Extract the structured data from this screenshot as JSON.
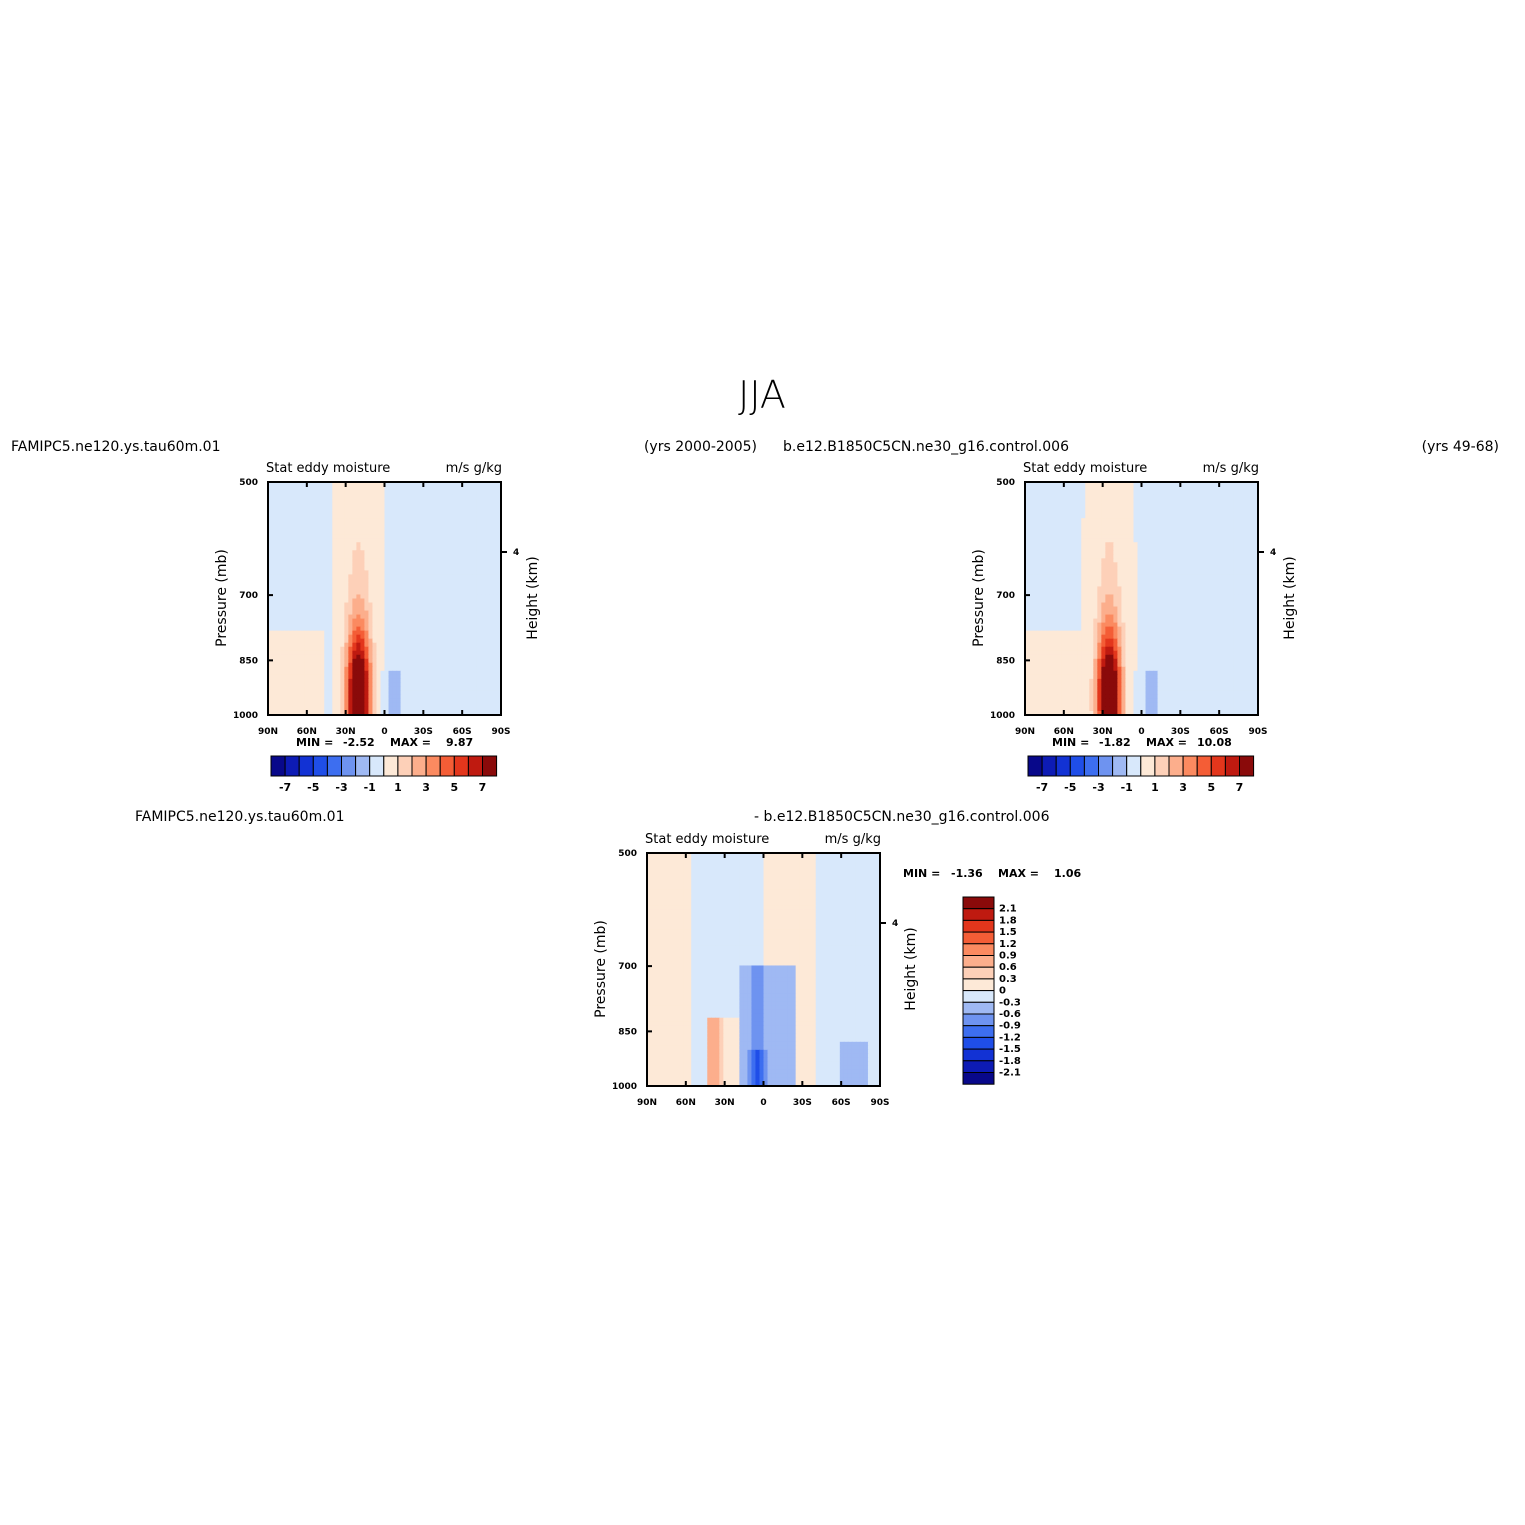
{
  "page_title": "JJA",
  "colors": {
    "neg": [
      "#08088a",
      "#0d1bb5",
      "#1232d4",
      "#1f4ee8",
      "#3d6ef0",
      "#6e93f0",
      "#9fb9f3",
      "#d8e8fb"
    ],
    "pos": [
      "#fde9d7",
      "#fdd0b8",
      "#fcae8c",
      "#fb8a60",
      "#f45d36",
      "#e3361c",
      "#bf1a10",
      "#8a0a0a"
    ],
    "axis": "#000000"
  },
  "chart_data": [
    {
      "type": "heatmap",
      "id": "panel1",
      "case_label": "FAMIPC5.ne120.ys.tau60m.01",
      "years_label": "(yrs 2000-2005)",
      "title": "Stat eddy moisture",
      "units": "m/s g/kg",
      "xlabel": "",
      "ylabel": "Pressure (mb)",
      "ylabel_right": "Height (km)",
      "x_ticks": [
        "90N",
        "60N",
        "30N",
        "0",
        "30S",
        "60S",
        "90S"
      ],
      "x_range": [
        90,
        -90
      ],
      "y_ticks": [
        "500",
        "700",
        "850",
        "1000"
      ],
      "y_range": [
        500,
        1000
      ],
      "right_ticks": [
        "4"
      ],
      "min_label": "MIN =",
      "min_value": "-2.52",
      "max_label": "MAX =",
      "max_value": "9.87",
      "colorbar_labels": [
        "-7",
        "-5",
        "-3",
        "-1",
        "1",
        "3",
        "5",
        "7"
      ],
      "contour_levels": [
        -7,
        -6,
        -5,
        -4,
        -3,
        -2,
        -1,
        0,
        1,
        2,
        3,
        4,
        5,
        6,
        7
      ],
      "max_center": {
        "lat": 20,
        "p": 950
      },
      "background": -0.5
    },
    {
      "type": "heatmap",
      "id": "panel2",
      "case_label": "b.e12.B1850C5CN.ne30_g16.control.006",
      "years_label": "(yrs 49-68)",
      "title": "Stat eddy moisture",
      "units": "m/s g/kg",
      "xlabel": "",
      "ylabel": "Pressure (mb)",
      "ylabel_right": "Height (km)",
      "x_ticks": [
        "90N",
        "60N",
        "30N",
        "0",
        "30S",
        "60S",
        "90S"
      ],
      "x_range": [
        90,
        -90
      ],
      "y_ticks": [
        "500",
        "700",
        "850",
        "1000"
      ],
      "y_range": [
        500,
        1000
      ],
      "right_ticks": [
        "4"
      ],
      "min_label": "MIN =",
      "min_value": "-1.82",
      "max_label": "MAX =",
      "max_value": "10.08",
      "colorbar_labels": [
        "-7",
        "-5",
        "-3",
        "-1",
        "1",
        "3",
        "5",
        "7"
      ],
      "contour_levels": [
        -7,
        -6,
        -5,
        -4,
        -3,
        -2,
        -1,
        0,
        1,
        2,
        3,
        4,
        5,
        6,
        7
      ],
      "max_center": {
        "lat": 25,
        "p": 950
      },
      "background": -0.5
    },
    {
      "type": "heatmap",
      "id": "panel3",
      "case_label": "FAMIPC5.ne120.ys.tau60m.01",
      "diff_label": "- b.e12.B1850C5CN.ne30_g16.control.006",
      "title": "Stat eddy moisture",
      "units": "m/s g/kg",
      "xlabel": "",
      "ylabel": "Pressure (mb)",
      "ylabel_right": "Height (km)",
      "x_ticks": [
        "90N",
        "60N",
        "30N",
        "0",
        "30S",
        "60S",
        "90S"
      ],
      "x_range": [
        90,
        -90
      ],
      "y_ticks": [
        "500",
        "700",
        "850",
        "1000"
      ],
      "y_range": [
        500,
        1000
      ],
      "right_ticks": [
        "4"
      ],
      "min_label": "MIN =",
      "min_value": "-1.36",
      "max_label": "MAX =",
      "max_value": "1.06",
      "colorbar_labels": [
        "2.1",
        "1.8",
        "1.5",
        "1.2",
        "0.9",
        "0.6",
        "0.3",
        "0",
        "-0.3",
        "-0.6",
        "-0.9",
        "-1.2",
        "-1.5",
        "-1.8",
        "-2.1"
      ]
    }
  ]
}
